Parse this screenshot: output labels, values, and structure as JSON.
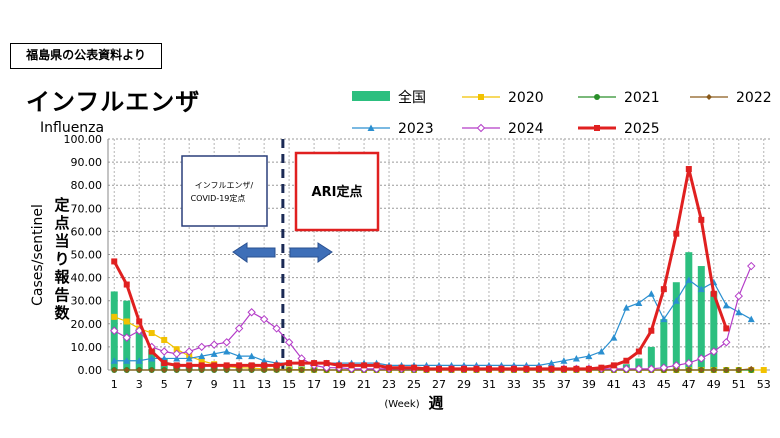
{
  "header": {
    "source_note": "福島県の公表資料より",
    "title": "インフルエンザ",
    "subtitle": "Influenza"
  },
  "chart_data": {
    "type": "line",
    "ylabel_en": "Cases/sentinel",
    "ylabel_ja": "定点当り報告数",
    "xlabel_en": "(Week)",
    "xlabel_ja": "週",
    "ylim": [
      0,
      100
    ],
    "y_ticks": [
      "0.00",
      "10.00",
      "20.00",
      "30.00",
      "40.00",
      "50.00",
      "60.00",
      "70.00",
      "80.00",
      "90.00",
      "100.00"
    ],
    "x_ticks": [
      "1",
      "3",
      "5",
      "7",
      "9",
      "11",
      "13",
      "15",
      "17",
      "19",
      "21",
      "23",
      "25",
      "27",
      "29",
      "31",
      "33",
      "35",
      "37",
      "39",
      "41",
      "43",
      "45",
      "47",
      "49",
      "51",
      "53"
    ],
    "grid": true,
    "legend_placement": "top-right",
    "annotations": {
      "left_box": "インフルエンザ/\nCOVID-19定点",
      "right_box": "ARI定点",
      "divider_week": 14.5
    },
    "bar_series": {
      "name": "全国",
      "color": "#2cbf7f",
      "weeks": [
        1,
        2,
        3,
        4,
        5,
        6,
        7,
        8,
        9,
        10,
        11,
        12,
        13,
        14,
        15,
        16,
        17,
        18,
        19,
        20,
        21,
        22,
        23,
        24,
        25,
        26,
        27,
        28,
        29,
        30,
        31,
        32,
        33,
        34,
        35,
        36,
        37,
        38,
        39,
        40,
        41,
        42,
        43,
        44,
        45,
        46,
        47,
        48,
        49,
        50,
        51,
        52
      ],
      "values": [
        34,
        30,
        18,
        9,
        5,
        3,
        2,
        1.5,
        1.5,
        2,
        2.5,
        3,
        2.5,
        2,
        1.5,
        1.5,
        1.2,
        1,
        1,
        1,
        1,
        0.8,
        0.8,
        0.6,
        0.5,
        0.5,
        0.5,
        0.5,
        0.5,
        0.5,
        0.5,
        0.5,
        0.5,
        0.5,
        0.5,
        0.5,
        0.5,
        0.6,
        0.8,
        1,
        1.5,
        2.5,
        5,
        10,
        22,
        38,
        51,
        45,
        34,
        0,
        0,
        0
      ]
    },
    "series": [
      {
        "name": "2020",
        "color": "#f2c200",
        "marker": "square",
        "values": [
          23,
          21,
          18,
          16,
          13,
          9,
          6,
          4,
          2.5,
          1.5,
          1,
          0.8,
          0.5,
          0.3,
          0.2,
          0.1,
          0.1,
          0,
          0,
          0,
          0,
          0,
          0,
          0,
          0,
          0,
          0,
          0,
          0,
          0,
          0,
          0,
          0,
          0,
          0,
          0,
          0,
          0,
          0,
          0,
          0,
          0,
          0,
          0,
          0,
          0,
          0,
          0,
          0,
          0,
          0,
          0,
          0
        ]
      },
      {
        "name": "2021",
        "color": "#2a8f2a",
        "marker": "circle",
        "values": [
          0,
          0,
          0,
          0,
          0,
          0,
          0,
          0,
          0,
          0,
          0,
          0,
          0,
          0,
          0,
          0,
          0,
          0,
          0,
          0,
          0,
          0,
          0,
          0,
          0,
          0,
          0,
          0,
          0,
          0,
          0,
          0,
          0,
          0,
          0,
          0,
          0,
          0,
          0,
          0,
          0,
          0,
          0,
          0,
          0,
          0,
          0,
          0,
          0,
          0,
          0,
          0
        ]
      },
      {
        "name": "2022",
        "color": "#8a5a1a",
        "marker": "diamond",
        "values": [
          0,
          0,
          0,
          0,
          0,
          0,
          0,
          0,
          0,
          0,
          0,
          0,
          0,
          0,
          0,
          0,
          0,
          0,
          0,
          0,
          0,
          0,
          0,
          0,
          0,
          0,
          0,
          0,
          0,
          0,
          0,
          0,
          0,
          0,
          0,
          0,
          0,
          0,
          0,
          0,
          0,
          0,
          0,
          0,
          0,
          0,
          0,
          0,
          0,
          0,
          0,
          0.5
        ]
      },
      {
        "name": "2023",
        "color": "#2a8fd0",
        "marker": "triangle",
        "values": [
          4,
          4,
          4,
          5,
          5,
          5,
          5,
          6,
          7,
          8,
          6,
          6,
          4,
          3,
          3,
          3,
          3,
          3,
          3,
          3,
          3,
          3,
          2,
          2,
          2,
          2,
          2,
          2,
          2,
          2,
          2,
          2,
          2,
          2,
          2,
          3,
          4,
          5,
          6,
          8,
          14,
          27,
          29,
          33,
          22,
          30,
          39,
          35,
          38,
          28,
          25,
          22
        ]
      },
      {
        "name": "2024",
        "color": "#b43cc8",
        "marker": "diamond-open",
        "values": [
          17,
          14,
          17,
          10,
          8,
          7,
          8,
          10,
          11,
          12,
          18,
          25,
          22,
          18,
          12,
          5,
          2,
          1,
          1,
          0.5,
          0.5,
          0.5,
          0.5,
          0.5,
          0.5,
          0.5,
          0.5,
          0.5,
          0.5,
          0.5,
          0.5,
          0.5,
          0.5,
          0.5,
          0.5,
          0.5,
          0.5,
          0.5,
          0.5,
          0.5,
          0.5,
          0.5,
          0.5,
          0.5,
          1,
          2,
          3,
          5,
          8,
          12,
          32,
          45
        ]
      },
      {
        "name": "2025",
        "color": "#e02020",
        "marker": "square",
        "values": [
          47,
          37,
          21,
          8,
          3,
          2,
          2,
          2,
          2,
          2,
          2,
          2,
          2,
          2,
          3,
          3,
          3,
          3,
          2,
          2,
          2,
          2,
          1,
          1,
          1,
          0.5,
          0.5,
          0.5,
          0.5,
          0.5,
          0.5,
          0.5,
          0.5,
          0.5,
          0.5,
          0.5,
          0.5,
          0.5,
          0.5,
          1,
          2,
          4,
          8,
          17,
          35,
          59,
          87,
          65,
          33,
          18
        ]
      }
    ]
  }
}
